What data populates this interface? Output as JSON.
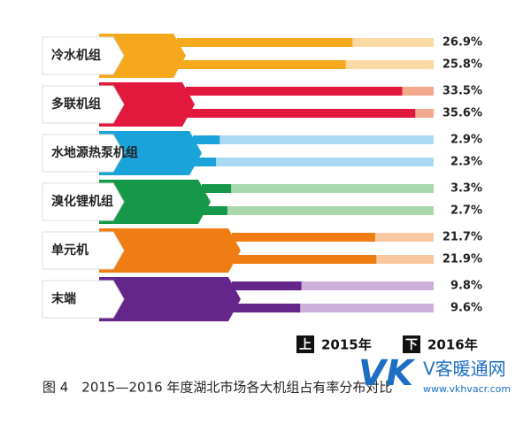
{
  "chart_data": {
    "type": "bar",
    "categories": [
      "冷水机组",
      "多联机组",
      "水地源热泵机组",
      "溴化锂机组",
      "单元机",
      "末端"
    ],
    "colors": [
      "#f5a81c",
      "#e2183c",
      "#1aa3d9",
      "#16984a",
      "#f07c14",
      "#64268a"
    ],
    "light_colors": [
      "#fbd9a3",
      "#f4a88e",
      "#a9d9f3",
      "#a9d8ac",
      "#f9c7a0",
      "#cdb0dc"
    ],
    "series": [
      {
        "name": "2015年",
        "legend_marker": "上",
        "values": [
          26.9,
          33.5,
          2.9,
          3.3,
          21.7,
          9.8
        ],
        "value_labels": [
          "26.9%",
          "33.5%",
          "2.9%",
          "3.3%",
          "21.7%",
          "9.8%"
        ]
      },
      {
        "name": "2016年",
        "legend_marker": "下",
        "values": [
          25.8,
          35.6,
          2.3,
          2.7,
          21.9,
          9.6
        ],
        "value_labels": [
          "25.8%",
          "35.6%",
          "2.3%",
          "2.7%",
          "21.9%",
          "9.6%"
        ]
      }
    ],
    "caption": "图 4　2015—2016 年度湖北市场各大机组占有率分布对比",
    "logo": {
      "mark": "VK",
      "name": "V客暖通网",
      "url": "www.vkhvacr.com"
    }
  }
}
